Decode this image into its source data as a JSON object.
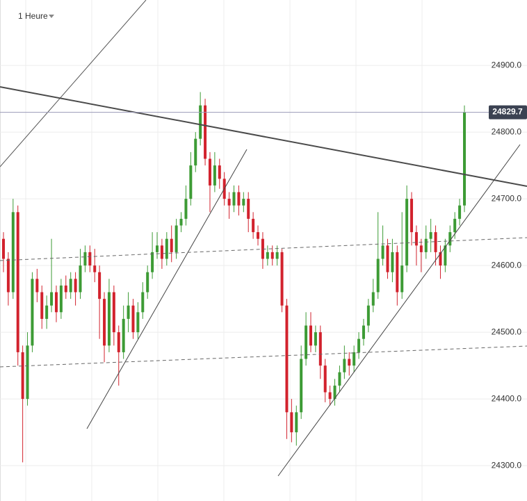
{
  "chart_data": {
    "type": "candlestick",
    "title": "1 Heure",
    "ylim": [
      24247,
      24998
    ],
    "yticks": [
      {
        "value": 24300,
        "label": "24300.0"
      },
      {
        "value": 24400,
        "label": "24400.0"
      },
      {
        "value": 24500,
        "label": "24500.0"
      },
      {
        "value": 24600,
        "label": "24600.0"
      },
      {
        "value": 24700,
        "label": "24700.0"
      },
      {
        "value": 24800,
        "label": "24800.0"
      },
      {
        "value": 24900,
        "label": "24900.0"
      }
    ],
    "grid": true,
    "up_color": "#3d9b35",
    "down_color": "#d2222d",
    "last_price": 24829.7,
    "open": [
      24640,
      24610,
      24560,
      24680,
      24470,
      24400,
      24480,
      24580,
      24560,
      24520,
      24540,
      24560,
      24530,
      24570,
      24560,
      24580,
      24560,
      24600,
      24620,
      24600,
      24590,
      24550,
      24480,
      24560,
      24500,
      24470,
      24520,
      24540,
      24500,
      24530,
      24560,
      24590,
      24620,
      24630,
      24610,
      24640,
      24620,
      24660,
      24670,
      24700,
      24750,
      24790,
      24840,
      24760,
      24720,
      24750,
      24730,
      24700,
      24690,
      24710,
      24690,
      24700,
      24670,
      24650,
      24640,
      24610,
      24620,
      24610,
      24620,
      24540,
      24380,
      24350,
      24380,
      24460,
      24510,
      24480,
      24500,
      24450,
      24410,
      24400,
      24420,
      24440,
      24460,
      24450,
      24470,
      24490,
      24510,
      24540,
      24560,
      24610,
      24630,
      24590,
      24620,
      24560,
      24600,
      24700,
      24650,
      24630,
      24620,
      24640,
      24650,
      24620,
      24600,
      24630,
      24650,
      24670,
      24690
    ],
    "high": [
      24650,
      24620,
      24700,
      24690,
      24480,
      24500,
      24590,
      24595,
      24570,
      24555,
      24640,
      24570,
      24580,
      24585,
      24590,
      24590,
      24625,
      24630,
      24630,
      24625,
      24600,
      24560,
      24580,
      24570,
      24510,
      24540,
      24560,
      24550,
      24545,
      24575,
      24600,
      24650,
      24650,
      24640,
      24650,
      24660,
      24670,
      24680,
      24720,
      24770,
      24800,
      24860,
      24850,
      24770,
      24770,
      24760,
      24740,
      24710,
      24720,
      24720,
      24710,
      24710,
      24680,
      24660,
      24650,
      24630,
      24630,
      24630,
      24625,
      24550,
      24400,
      24390,
      24480,
      24530,
      24530,
      24510,
      24510,
      24460,
      24420,
      24430,
      24450,
      24480,
      24470,
      24480,
      24500,
      24520,
      24550,
      24580,
      24680,
      24660,
      24640,
      24640,
      24630,
      24680,
      24720,
      24710,
      24660,
      24640,
      24660,
      24670,
      24660,
      24630,
      24640,
      24660,
      24680,
      24700,
      24840
    ],
    "low": [
      24590,
      24540,
      24550,
      24450,
      24305,
      24390,
      24470,
      24545,
      24505,
      24505,
      24530,
      24515,
      24520,
      24550,
      24550,
      24540,
      24550,
      24590,
      24590,
      24575,
      24490,
      24455,
      24470,
      24480,
      24420,
      24460,
      24500,
      24490,
      24490,
      24520,
      24550,
      24580,
      24610,
      24595,
      24600,
      24605,
      24610,
      24650,
      24660,
      24690,
      24740,
      24780,
      24750,
      24680,
      24710,
      24715,
      24690,
      24670,
      24680,
      24675,
      24680,
      24650,
      24640,
      24630,
      24595,
      24600,
      24600,
      24600,
      24530,
      24340,
      24335,
      24330,
      24370,
      24450,
      24470,
      24470,
      24430,
      24395,
      24390,
      24390,
      24410,
      24430,
      24435,
      24440,
      24460,
      24480,
      24500,
      24530,
      24550,
      24600,
      24580,
      24575,
      24540,
      24550,
      24590,
      24630,
      24600,
      24590,
      24610,
      24620,
      24600,
      24580,
      24590,
      24620,
      24640,
      24660,
      24680
    ],
    "close": [
      24610,
      24560,
      24680,
      24470,
      24400,
      24480,
      24580,
      24560,
      24520,
      24540,
      24560,
      24530,
      24570,
      24560,
      24580,
      24560,
      24600,
      24620,
      24600,
      24590,
      24550,
      24480,
      24560,
      24500,
      24470,
      24520,
      24540,
      24500,
      24530,
      24560,
      24590,
      24620,
      24630,
      24610,
      24640,
      24620,
      24660,
      24670,
      24700,
      24750,
      24790,
      24840,
      24760,
      24720,
      24750,
      24730,
      24700,
      24690,
      24710,
      24690,
      24700,
      24670,
      24650,
      24640,
      24610,
      24620,
      24610,
      24620,
      24540,
      24380,
      24350,
      24380,
      24460,
      24510,
      24480,
      24500,
      24450,
      24410,
      24400,
      24420,
      24440,
      24460,
      24450,
      24470,
      24490,
      24510,
      24540,
      24560,
      24610,
      24630,
      24590,
      24620,
      24560,
      24600,
      24700,
      24650,
      24630,
      24620,
      24640,
      24650,
      24620,
      24600,
      24630,
      24650,
      24670,
      24690,
      24830
    ]
  }
}
